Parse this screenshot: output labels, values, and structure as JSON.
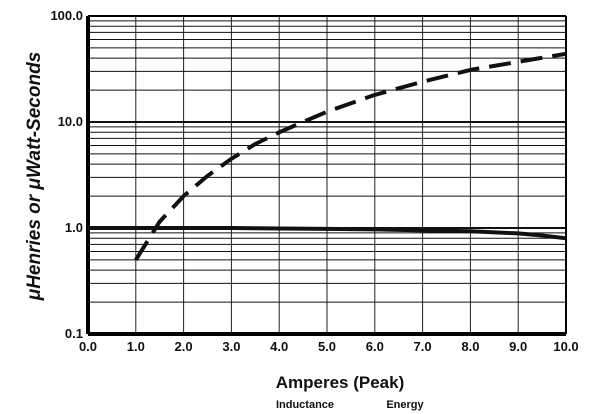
{
  "chart_data": {
    "type": "line",
    "xlabel": "Amperes (Peak)",
    "ylabel": "μHenries or  μWatt-Seconds",
    "xlim": [
      0,
      10
    ],
    "ylim": [
      0.1,
      100
    ],
    "y_scale": "log",
    "grid": true,
    "x_ticks": [
      "0.0",
      "1.0",
      "2.0",
      "3.0",
      "4.0",
      "5.0",
      "6.0",
      "7.0",
      "8.0",
      "9.0",
      "10.0"
    ],
    "y_ticks": [
      "0.1",
      "1.0",
      "10.0",
      "100.0"
    ],
    "legend_position": "bottom-center",
    "legend": [
      "Inductance",
      "Energy"
    ],
    "series": [
      {
        "name": "Inductance",
        "style": "solid",
        "x": [
          0.0,
          1.0,
          2.0,
          3.0,
          4.0,
          5.0,
          6.0,
          7.0,
          8.0,
          9.0,
          9.5,
          10.0
        ],
        "y": [
          1.0,
          1.0,
          1.0,
          1.0,
          0.99,
          0.98,
          0.97,
          0.95,
          0.93,
          0.89,
          0.85,
          0.8
        ]
      },
      {
        "name": "Energy",
        "style": "dashed",
        "x": [
          1.0,
          1.5,
          2.0,
          2.5,
          3.0,
          3.5,
          4.0,
          5.0,
          6.0,
          7.0,
          8.0,
          9.0,
          10.0
        ],
        "y": [
          0.5,
          1.15,
          2.0,
          3.1,
          4.5,
          6.2,
          8.0,
          12.5,
          18.0,
          24.0,
          31.0,
          37.0,
          44.0
        ]
      }
    ]
  }
}
